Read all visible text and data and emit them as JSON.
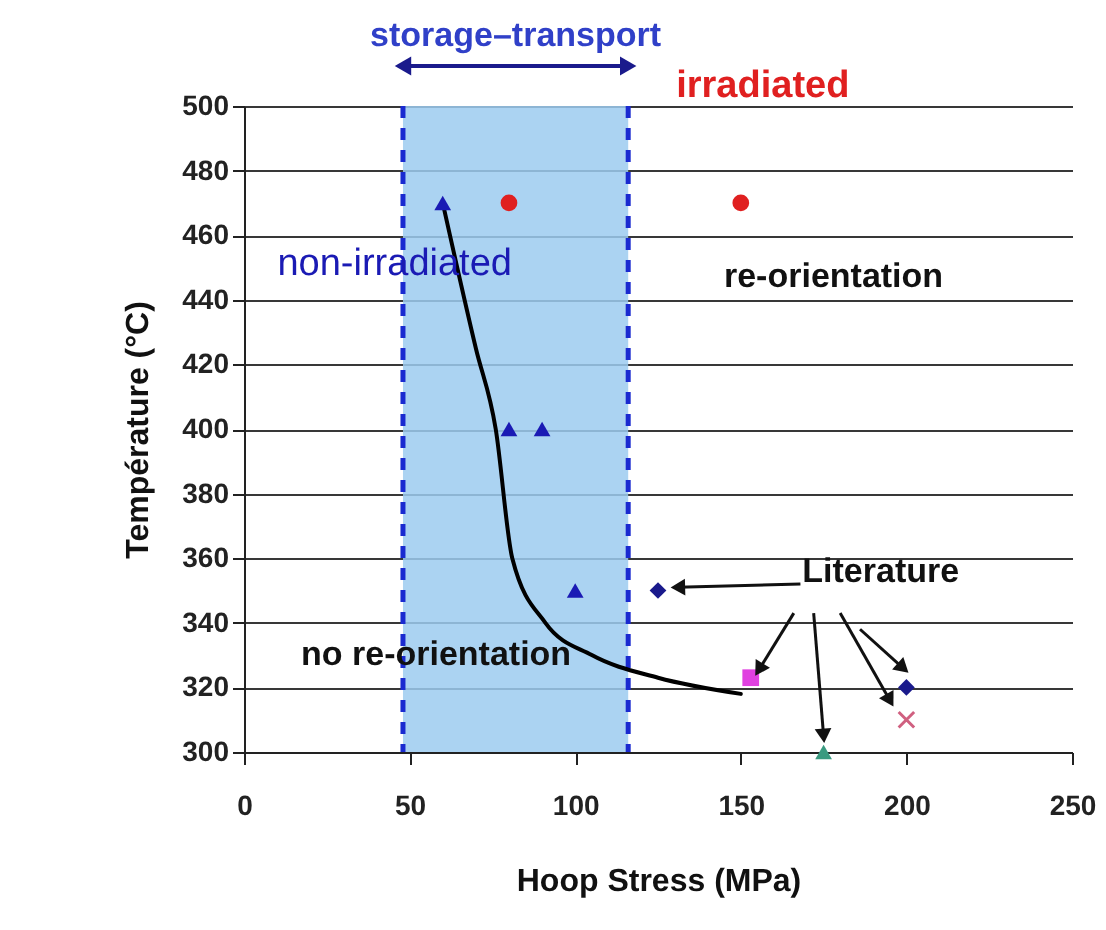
{
  "chart_data": {
    "type": "scatter",
    "xlabel": "Hoop Stress (MPa)",
    "ylabel": "Température (°C)",
    "xlim": [
      0,
      250
    ],
    "xticks": [
      0,
      50,
      100,
      150,
      200,
      250
    ],
    "ylim": [
      300,
      500
    ],
    "yticks": [
      300,
      320,
      340,
      360,
      380,
      400,
      420,
      440,
      460,
      480,
      500
    ],
    "grid": "y",
    "series": [
      {
        "type": "line",
        "color": "#000000",
        "marker": "none",
        "x": [
          60,
          70,
          76,
          81,
          91,
          105,
          125,
          150
        ],
        "values": [
          470,
          425,
          400,
          360,
          340,
          330,
          323,
          318
        ]
      },
      {
        "name": "non-irradiated",
        "color": "#1a1ab4",
        "marker": "triangle",
        "x": [
          60,
          80,
          90,
          100
        ],
        "values": [
          470,
          400,
          400,
          350
        ]
      },
      {
        "name": "irradiated",
        "color": "#e02020",
        "marker": "circle",
        "x": [
          80,
          150
        ],
        "values": [
          470,
          470
        ]
      },
      {
        "color": "#1a1a8c",
        "marker": "diamond",
        "x": [
          125
        ],
        "values": [
          350
        ]
      },
      {
        "color": "#e040e0",
        "marker": "square",
        "x": [
          153
        ],
        "values": [
          323
        ]
      },
      {
        "color": "#3a9a80",
        "marker": "triangle",
        "x": [
          175
        ],
        "values": [
          300
        ]
      },
      {
        "color": "#1a1a8c",
        "marker": "diamond",
        "x": [
          200
        ],
        "values": [
          320
        ]
      },
      {
        "color": "#d06080",
        "marker": "cross",
        "x": [
          200
        ],
        "values": [
          310
        ]
      }
    ],
    "bands": [
      {
        "axis": "x",
        "from": 48,
        "to": 116,
        "label": "storage–transport",
        "color": "#9ccbf0"
      }
    ],
    "ref_lines": [
      {
        "axis": "x",
        "value": 48,
        "color": "#1a2ad0",
        "line_style": "dashed"
      },
      {
        "axis": "x",
        "value": 116,
        "color": "#1a2ad0",
        "line_style": "dashed"
      }
    ],
    "annotations": [
      "re-orientation",
      "no re-orientation",
      {
        "text": "Literature",
        "x": 153,
        "y": 323
      }
    ]
  }
}
